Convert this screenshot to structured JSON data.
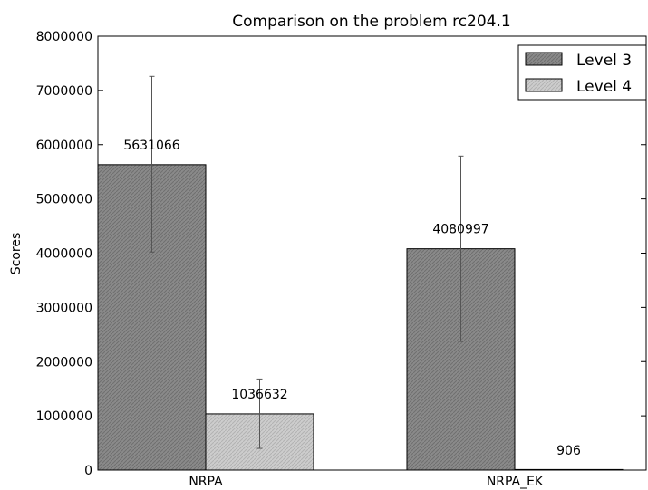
{
  "chart_data": {
    "type": "bar",
    "title": "Comparison on the problem rc204.1",
    "xlabel": "",
    "ylabel": "Scores",
    "categories": [
      "NRPA",
      "NRPA_EK"
    ],
    "ylim": [
      0,
      8000000
    ],
    "yticks": [
      "0",
      "1000000",
      "2000000",
      "3000000",
      "4000000",
      "5000000",
      "6000000",
      "7000000",
      "8000000"
    ],
    "legend_position": "top-right",
    "grid": false,
    "series": [
      {
        "name": "Level 3",
        "color": "#8a8a8a",
        "values": [
          5631066,
          4080997
        ],
        "labels": [
          "5631066",
          "4080997"
        ],
        "err_low": [
          4020000,
          2370000
        ],
        "err_high": [
          7260000,
          5790000
        ]
      },
      {
        "name": "Level 4",
        "color": "#c9c9c9",
        "values": [
          1036632,
          906
        ],
        "labels": [
          "1036632",
          "906"
        ],
        "err_low": [
          400000,
          0
        ],
        "err_high": [
          1680000,
          0
        ]
      }
    ]
  }
}
